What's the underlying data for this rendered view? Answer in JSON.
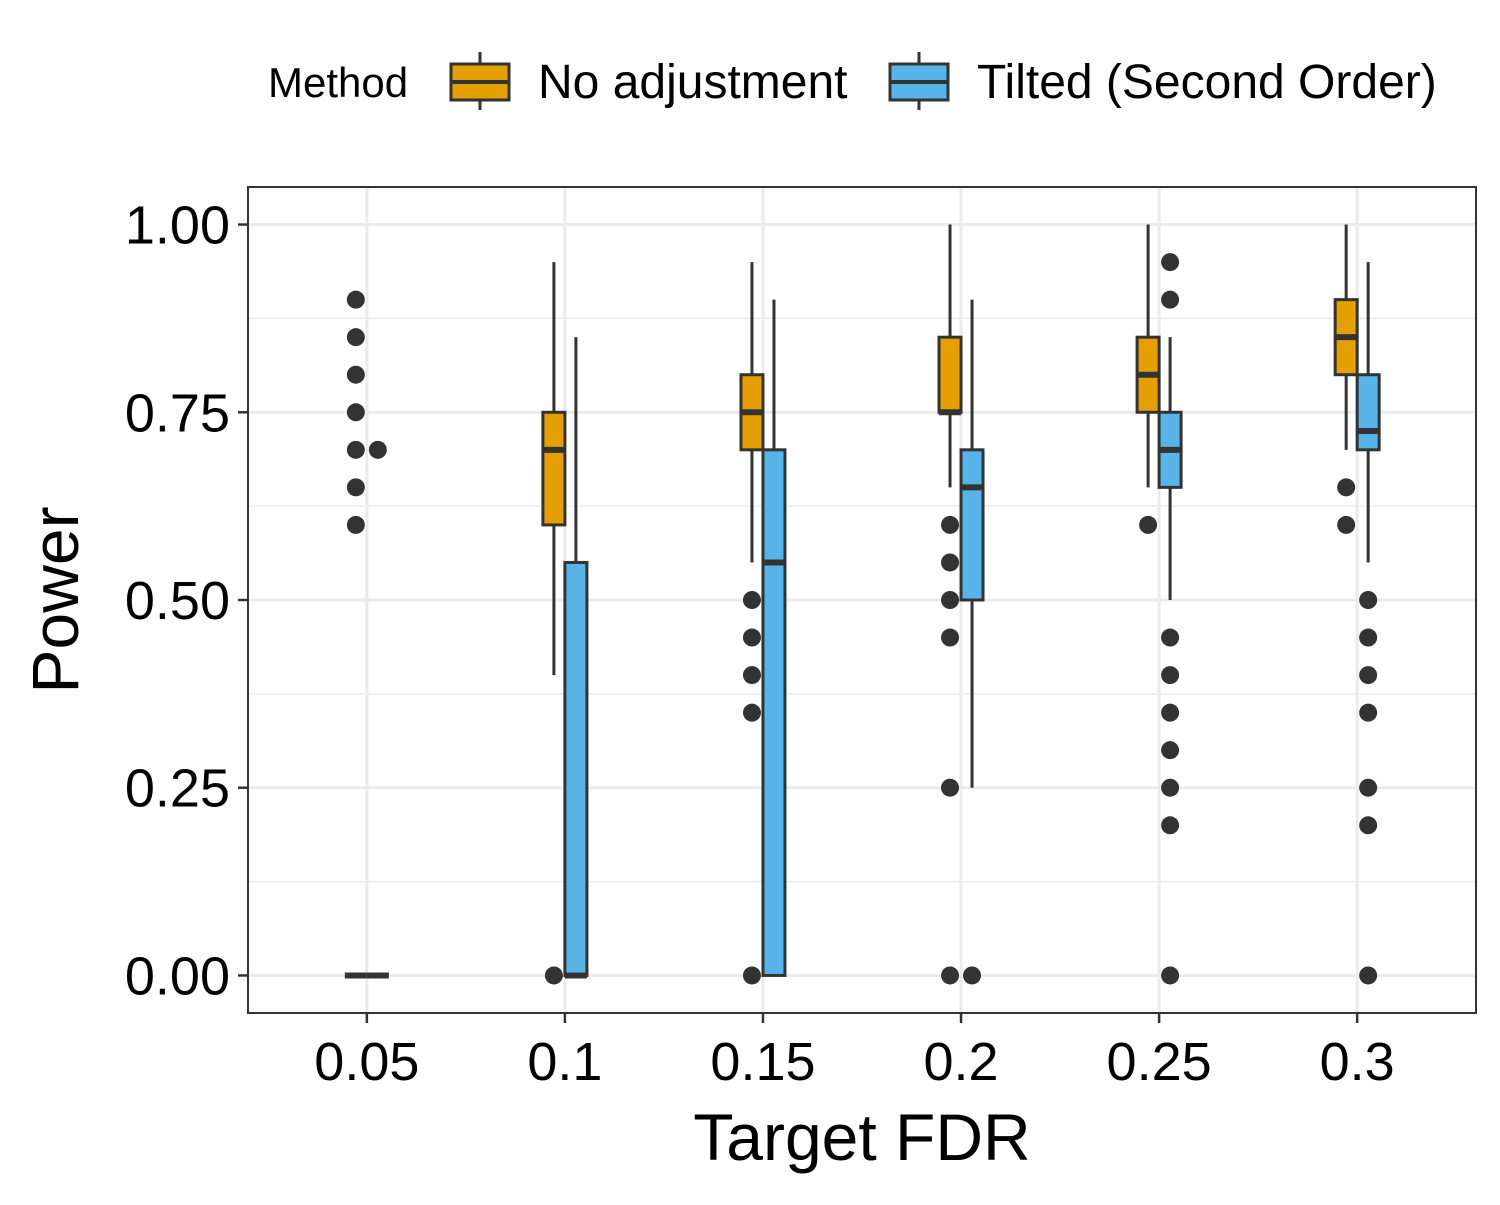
{
  "chart_data": {
    "type": "boxplot",
    "title": "",
    "xlabel": "Target FDR",
    "ylabel": "Power",
    "ylim": [
      -0.05,
      1.05
    ],
    "y_ticks": [
      "0.00",
      "0.25",
      "0.50",
      "0.75",
      "1.00"
    ],
    "y_tick_values": [
      0,
      0.25,
      0.5,
      0.75,
      1.0
    ],
    "categories": [
      "0.05",
      "0.1",
      "0.15",
      "0.2",
      "0.25",
      "0.3"
    ],
    "grid": true,
    "legend": {
      "title": "Method",
      "position": "top",
      "entries": [
        "No adjustment",
        "Tilted (Second Order)"
      ]
    },
    "series": [
      {
        "name": "No adjustment",
        "color": "#E69F00",
        "boxes": [
          {
            "q1": 0,
            "median": 0,
            "q3": 0,
            "whisker_low": 0,
            "whisker_high": 0,
            "outliers": [
              0.6,
              0.65,
              0.7,
              0.75,
              0.8,
              0.85,
              0.9
            ]
          },
          {
            "q1": 0.6,
            "median": 0.7,
            "q3": 0.75,
            "whisker_low": 0.4,
            "whisker_high": 0.95,
            "outliers": [
              0
            ]
          },
          {
            "q1": 0.7,
            "median": 0.75,
            "q3": 0.8,
            "whisker_low": 0.55,
            "whisker_high": 0.95,
            "outliers": [
              0,
              0.35,
              0.4,
              0.45,
              0.5
            ]
          },
          {
            "q1": 0.75,
            "median": 0.75,
            "q3": 0.85,
            "whisker_low": 0.65,
            "whisker_high": 1.0,
            "outliers": [
              0,
              0.25,
              0.45,
              0.5,
              0.55,
              0.6
            ]
          },
          {
            "q1": 0.75,
            "median": 0.8,
            "q3": 0.85,
            "whisker_low": 0.65,
            "whisker_high": 1.0,
            "outliers": [
              0.6
            ]
          },
          {
            "q1": 0.8,
            "median": 0.85,
            "q3": 0.9,
            "whisker_low": 0.7,
            "whisker_high": 1.0,
            "outliers": [
              0.6,
              0.65
            ]
          }
        ]
      },
      {
        "name": "Tilted (Second Order)",
        "color": "#56B4E9",
        "boxes": [
          {
            "q1": 0,
            "median": 0,
            "q3": 0,
            "whisker_low": 0,
            "whisker_high": 0,
            "outliers": [
              0.7
            ]
          },
          {
            "q1": 0,
            "median": 0,
            "q3": 0.55,
            "whisker_low": 0,
            "whisker_high": 0.85,
            "outliers": []
          },
          {
            "q1": 0,
            "median": 0.55,
            "q3": 0.7,
            "whisker_low": 0,
            "whisker_high": 0.9,
            "outliers": []
          },
          {
            "q1": 0.5,
            "median": 0.65,
            "q3": 0.7,
            "whisker_low": 0.25,
            "whisker_high": 0.9,
            "outliers": [
              0
            ]
          },
          {
            "q1": 0.65,
            "median": 0.7,
            "q3": 0.75,
            "whisker_low": 0.5,
            "whisker_high": 0.85,
            "outliers": [
              0,
              0.2,
              0.25,
              0.3,
              0.35,
              0.4,
              0.45,
              0.95,
              0.9
            ]
          },
          {
            "q1": 0.7,
            "median": 0.725,
            "q3": 0.8,
            "whisker_low": 0.55,
            "whisker_high": 0.95,
            "outliers": [
              0,
              0.2,
              0.25,
              0.35,
              0.4,
              0.45,
              0.5
            ]
          }
        ]
      }
    ]
  }
}
